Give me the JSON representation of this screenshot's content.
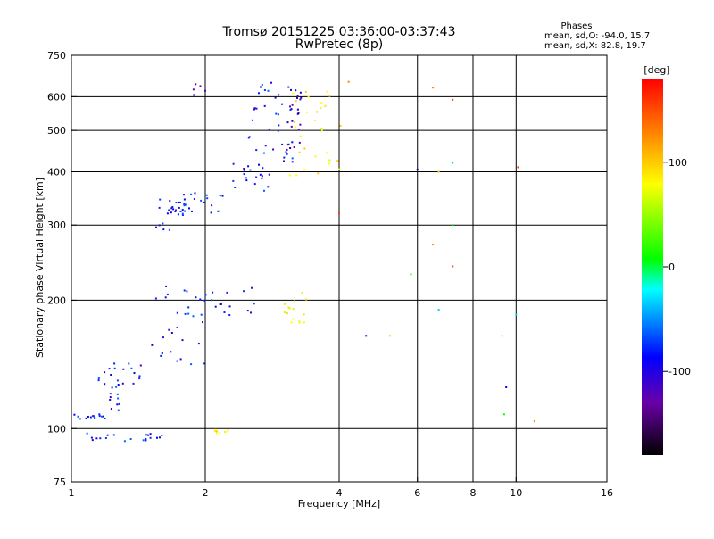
{
  "chart_data": {
    "type": "scatter",
    "title": "Tromsø 20151225 03:36:00-03:37:43",
    "subtitle": "RwPretec (8p)",
    "stats": {
      "heading": "Phases",
      "line_o": "mean, sd,O: -94.0, 15.7",
      "line_x": "mean, sd,X:  82.8, 19.7"
    },
    "xlabel": "Frequency [MHz]",
    "ylabel": "Stationary phase Virtual Height [km]",
    "xscale": "log",
    "yscale": "log",
    "xlim": [
      1,
      16
    ],
    "ylim": [
      75,
      750
    ],
    "x_ticks": [
      1,
      2,
      4,
      6,
      8,
      10,
      16
    ],
    "x_tick_labels": [
      "1",
      "2",
      "4",
      "6",
      "8",
      "10",
      "16"
    ],
    "y_ticks": [
      75,
      100,
      200,
      300,
      400,
      500,
      600,
      750
    ],
    "y_tick_labels": [
      "75",
      "100",
      "200",
      "300",
      "400",
      "500",
      "600",
      "750"
    ],
    "grid": true,
    "colorbar": {
      "label": "[deg]",
      "range": [
        -180,
        180
      ],
      "ticks": [
        100,
        0,
        -100
      ],
      "tick_labels": [
        "100",
        "0",
        "-100"
      ],
      "colors": [
        "#000000",
        "#6a00a8",
        "#0000ff",
        "#00ffff",
        "#00ff00",
        "#ffff00",
        "#ff8000",
        "#ff0000"
      ]
    },
    "series": [
      {
        "color": "blue",
        "clusters": [
          {
            "x": [
              1.0,
              1.6
            ],
            "y": [
              93,
              98
            ],
            "density": 20
          },
          {
            "x": [
              1.0,
              1.2
            ],
            "y": [
              105,
              108
            ],
            "density": 15
          },
          {
            "x": [
              1.15,
              1.5
            ],
            "y": [
              125,
              145
            ],
            "density": 20
          },
          {
            "x": [
              1.2,
              1.3
            ],
            "y": [
              110,
              125
            ],
            "density": 10
          },
          {
            "x": [
              1.5,
              2.0
            ],
            "y": [
              140,
              220
            ],
            "density": 30
          },
          {
            "x": [
              1.55,
              1.8
            ],
            "y": [
              290,
              360
            ],
            "density": 20
          },
          {
            "x": [
              1.65,
              2.2
            ],
            "y": [
              320,
              360
            ],
            "density": 25
          },
          {
            "x": [
              2.0,
              2.6
            ],
            "y": [
              180,
              215
            ],
            "density": 15
          },
          {
            "x": [
              2.3,
              2.8
            ],
            "y": [
              360,
              420
            ],
            "density": 20
          },
          {
            "x": [
              2.5,
              3.2
            ],
            "y": [
              420,
              650
            ],
            "density": 40
          }
        ]
      },
      {
        "color": "purple",
        "clusters": [
          {
            "x": [
              3.05,
              3.3
            ],
            "y": [
              450,
              650
            ],
            "density": 20
          },
          {
            "x": [
              1.8,
              2.2
            ],
            "y": [
              600,
              650
            ],
            "density": 5
          }
        ]
      },
      {
        "color": "yellow",
        "clusters": [
          {
            "x": [
              3.1,
              4.1
            ],
            "y": [
              390,
              650
            ],
            "density": 30
          },
          {
            "x": [
              3.0,
              3.4
            ],
            "y": [
              170,
              210
            ],
            "density": 15
          },
          {
            "x": [
              2.1,
              2.3
            ],
            "y": [
              97,
              100
            ],
            "density": 8
          }
        ]
      },
      {
        "color": "misc",
        "points": [
          [
            6.5,
            630
          ],
          [
            7.2,
            590
          ],
          [
            7.2,
            420
          ],
          [
            6.7,
            400
          ],
          [
            6.0,
            405
          ],
          [
            7.2,
            300
          ],
          [
            6.5,
            270
          ],
          [
            7.2,
            240
          ],
          [
            6.7,
            190
          ],
          [
            9.3,
            165
          ],
          [
            9.5,
            125
          ],
          [
            9.4,
            108
          ],
          [
            11.0,
            104
          ],
          [
            10.1,
            410
          ],
          [
            10.0,
            185
          ],
          [
            5.2,
            165
          ],
          [
            4.6,
            165
          ],
          [
            5.8,
            230
          ],
          [
            4.2,
            650
          ],
          [
            4.0,
            320
          ]
        ]
      }
    ]
  }
}
